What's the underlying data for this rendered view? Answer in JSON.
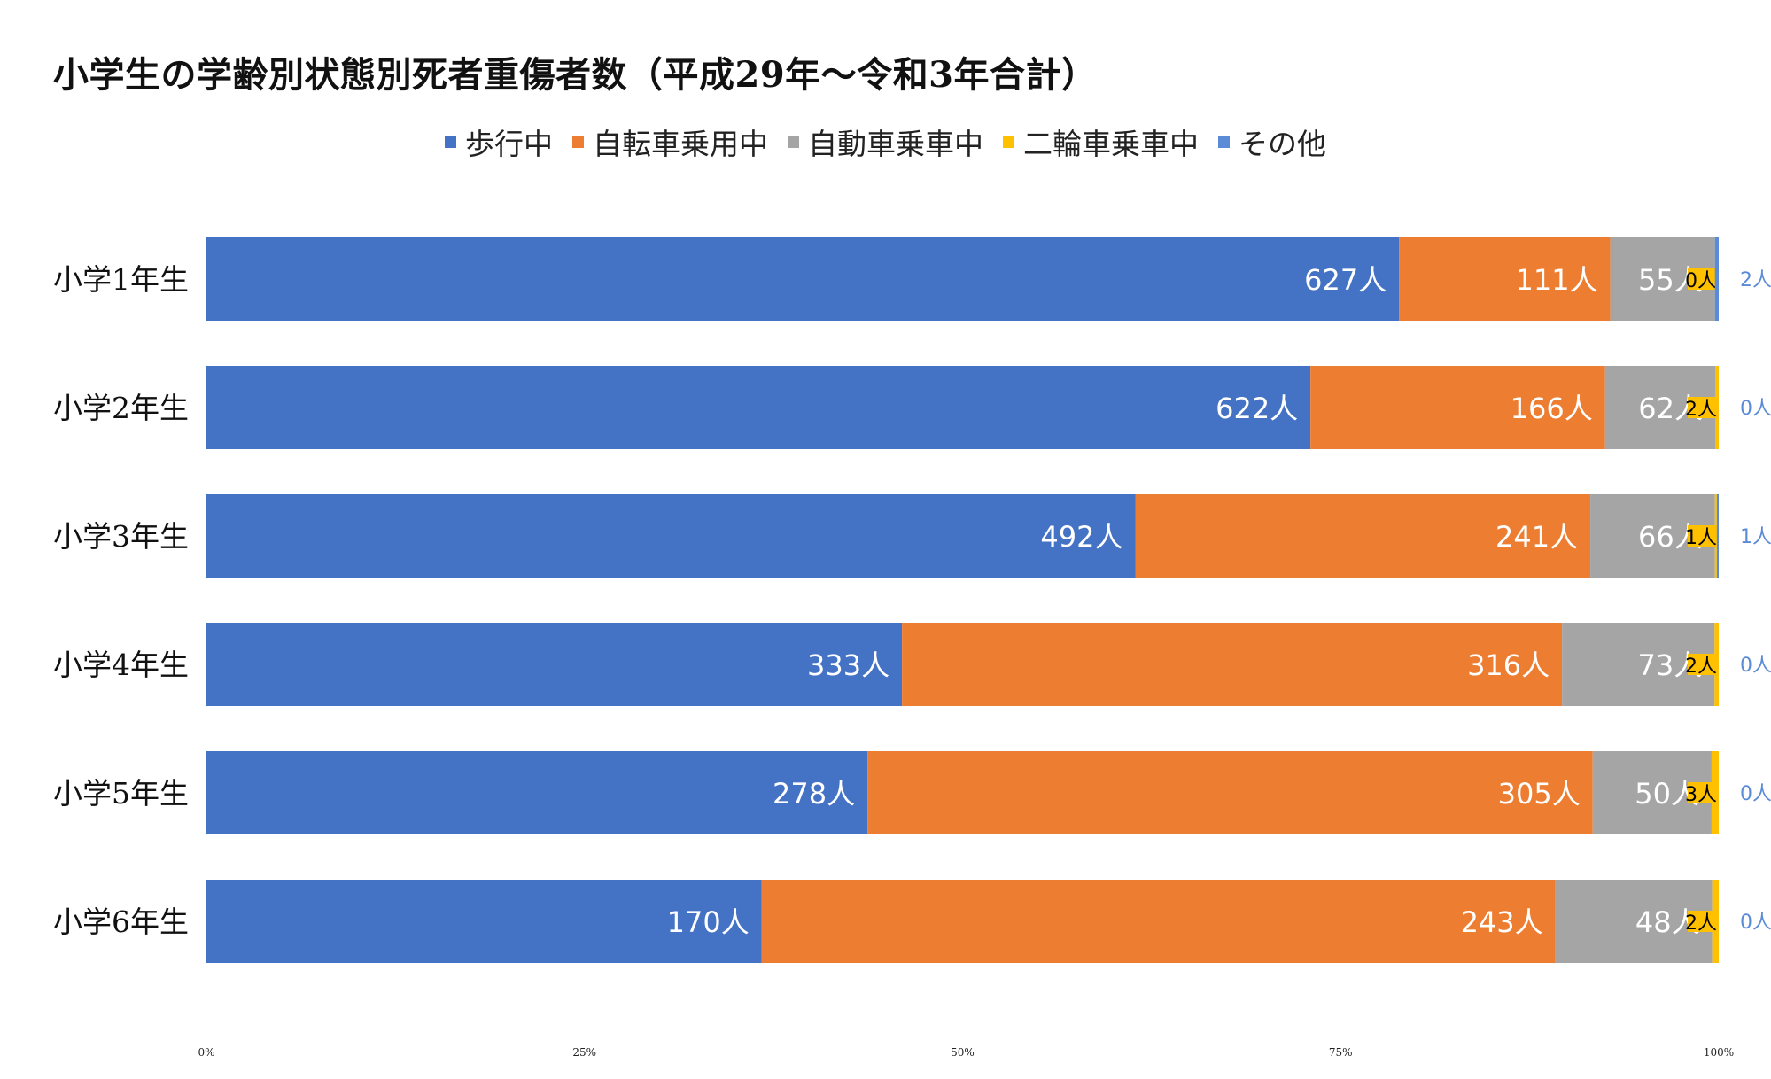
{
  "title": "小学生の学齢別状態別死者重傷者数（平成29年〜令和3年合計）",
  "unit_suffix": "人",
  "chart_data": {
    "type": "bar",
    "orientation": "horizontal",
    "stacked": "percent",
    "title": "小学生の学齢別状態別死者重傷者数（平成29年〜令和3年合計）",
    "xlabel": "",
    "ylabel": "",
    "xlim": [
      0,
      100
    ],
    "x_ticks": [
      "0%",
      "25%",
      "50%",
      "75%",
      "100%"
    ],
    "legend_position": "top",
    "grid": false,
    "categories": [
      "小学1年生",
      "小学2年生",
      "小学3年生",
      "小学4年生",
      "小学5年生",
      "小学6年生"
    ],
    "series": [
      {
        "name": "歩行中",
        "color": "#4472C4",
        "values": [
          627,
          622,
          492,
          333,
          278,
          170
        ],
        "label_color": "#ffffff"
      },
      {
        "name": "自転車乗用中",
        "color": "#ED7D31",
        "values": [
          111,
          166,
          241,
          316,
          305,
          243
        ],
        "label_color": "#ffffff"
      },
      {
        "name": "自動車乗車中",
        "color": "#A5A5A5",
        "values": [
          55,
          62,
          66,
          73,
          50,
          48
        ],
        "label_color": "#ffffff"
      },
      {
        "name": "二輪車乗車中",
        "color": "#FFC000",
        "values": [
          0,
          2,
          1,
          2,
          3,
          2
        ],
        "label_color": "#000000"
      },
      {
        "name": "その他",
        "color": "#5B8BD6",
        "values": [
          2,
          0,
          1,
          0,
          0,
          0
        ],
        "label_color": "#5B8BD6"
      }
    ]
  }
}
